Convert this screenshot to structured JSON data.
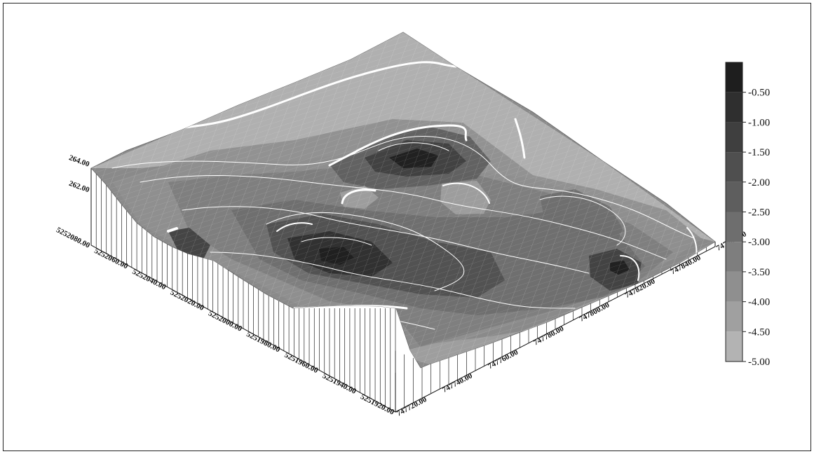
{
  "chart_data": {
    "type": "surface-3d",
    "title": "",
    "x_ticks": [
      "747720.00",
      "747740.00",
      "747760.00",
      "747780.00",
      "747800.00",
      "747820.00",
      "747840.00",
      "747860.00"
    ],
    "y_ticks": [
      "5252080.00",
      "5252060.00",
      "5252040.00",
      "5252020.00",
      "5252000.00",
      "5251980.00",
      "5251960.00",
      "5251940.00",
      "5251920.00"
    ],
    "z_ticks": [
      "264.00",
      "262.00"
    ],
    "zlim": [
      258,
      264
    ],
    "color_scale": {
      "labels": [
        "-0.50",
        "-1.00",
        "-1.50",
        "-2.00",
        "-2.50",
        "-3.00",
        "-3.50",
        "-4.00",
        "-4.50",
        "-5.00"
      ],
      "colors": [
        "#1e1e1e",
        "#2f2f2f",
        "#3f3f3f",
        "#4f4f4f",
        "#5e5e5e",
        "#6e6e6e",
        "#7e7e7e",
        "#8f8f8f",
        "#a0a0a0",
        "#b3b3b3"
      ]
    },
    "contours": "white contour lines",
    "grid": true
  }
}
